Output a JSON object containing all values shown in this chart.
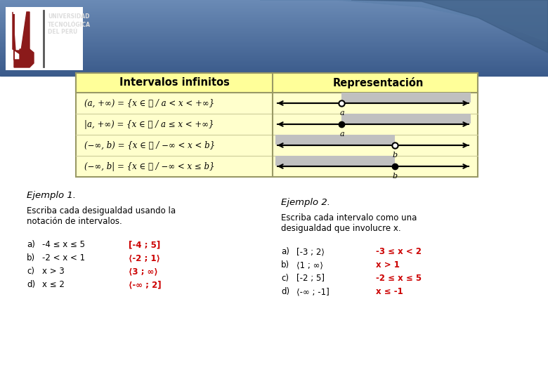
{
  "bg_color": "#ffffff",
  "red_color": "#cc0000",
  "title1": "Intervalos infinitos",
  "title2": "Representación",
  "row1_left": "(−∞, b| = {x ∈ ℝ / −∞ < x ≤ b}",
  "row2_left": "(−∞, b) = {x ∈ ℝ / −∞ < x < b}",
  "row3_left": "|a, +∞) = {x ∈ ℝ / a ≤ x < +∞}",
  "row4_left": "(a, +∞) = {x ∈ ℝ / a < x < +∞}",
  "ej1_title": "Ejemplo 1.",
  "ej1_subtitle1": "Escriba cada desigualdad usando la",
  "ej1_subtitle2": "notación de intervalos.",
  "ej1_labels": [
    "a)",
    "b)",
    "c)",
    "d)"
  ],
  "ej1_items_black": [
    "-4 ≤ x ≤ 5",
    "-2 < x < 1",
    "x > 3",
    "x ≤ 2"
  ],
  "ej1_items_red": [
    "[-4 ; 5]",
    "⟨-2 ; 1⟩",
    "⟨3 ; ∞⟩",
    "⟨-∞ ; 2]"
  ],
  "ej2_title": "Ejemplo 2.",
  "ej2_subtitle1": "Escriba cada intervalo como una",
  "ej2_subtitle2": "desigualdad que involucre x.",
  "ej2_labels": [
    "a)",
    "b)",
    "c)",
    "d)"
  ],
  "ej2_items_black": [
    "[-3 ; 2⟩",
    "⟨1 ; ∞⟩",
    "[-2 ; 5]",
    "⟨-∞ ; -1]"
  ],
  "ej2_items_red": [
    "-3 ≤ x < 2",
    "x > 1",
    "-2 ≤ x ≤ 5",
    "x ≤ -1"
  ],
  "univ_line1": "UNIVERSIDAD",
  "univ_line2": "TECNOLÓGICA",
  "univ_line3": "DEL PERÚ"
}
